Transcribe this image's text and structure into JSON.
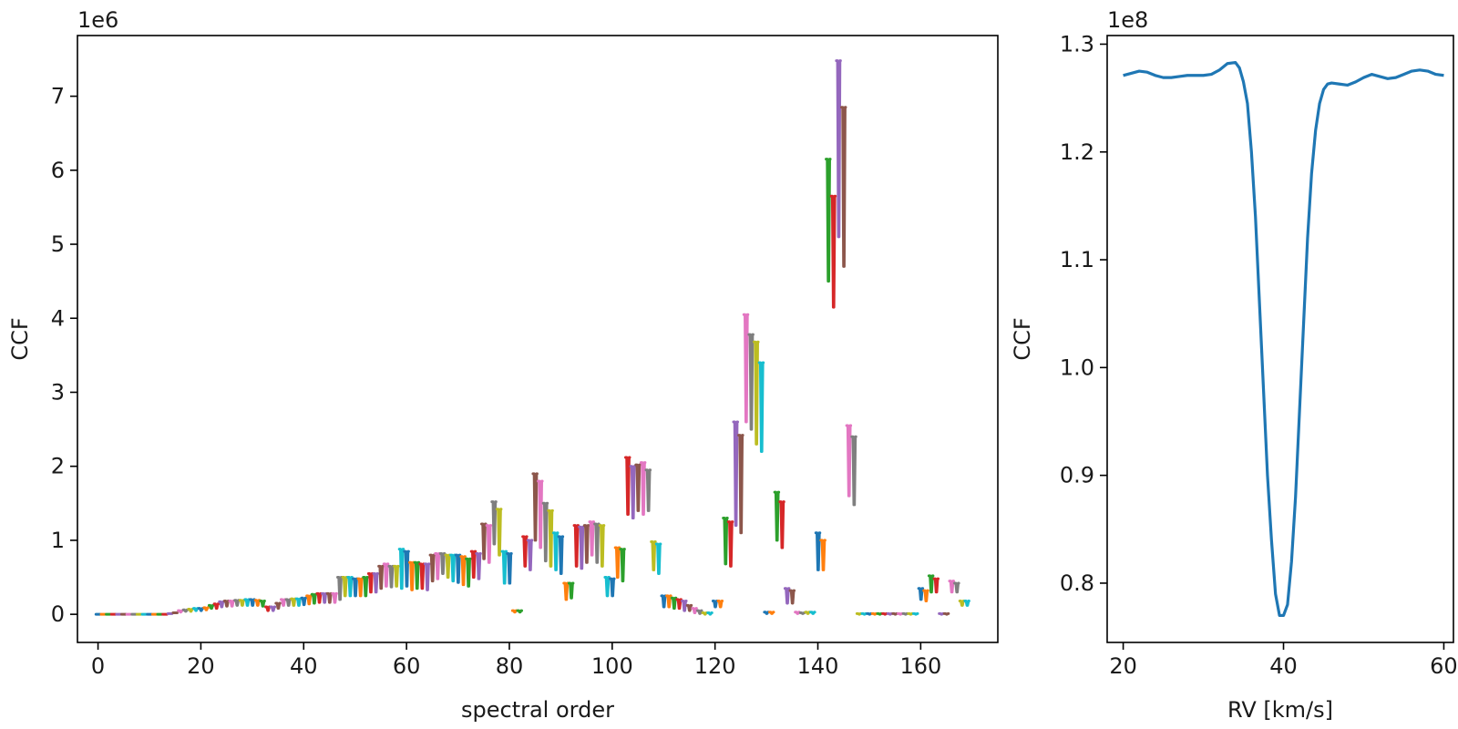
{
  "chart_data": [
    {
      "type": "line",
      "xlabel": "spectral order",
      "ylabel": "CCF",
      "y_offset_label": "1e6",
      "xlim": [
        -4,
        175
      ],
      "ylim": [
        -0.38,
        7.82
      ],
      "xticks": [
        0,
        20,
        40,
        60,
        80,
        100,
        120,
        140,
        160
      ],
      "yticks": [
        0,
        1,
        2,
        3,
        4,
        5,
        6,
        7
      ],
      "grid": false,
      "legend": "none",
      "palette": [
        "#1f77b4",
        "#ff7f0e",
        "#2ca02c",
        "#d62728",
        "#9467bd",
        "#8c564b",
        "#e377c2",
        "#7f7f7f",
        "#bcbd22",
        "#17becf"
      ],
      "segment_width": 0.8,
      "orders_start": 0,
      "order_profiles": [
        [
          0,
          0
        ],
        [
          0,
          0
        ],
        [
          0,
          0
        ],
        [
          0,
          0
        ],
        [
          0,
          0
        ],
        [
          0,
          0
        ],
        [
          0,
          0
        ],
        [
          0,
          0
        ],
        [
          0,
          0
        ],
        [
          0,
          0
        ],
        [
          0,
          0
        ],
        [
          0,
          0
        ],
        [
          0,
          0
        ],
        [
          0,
          0
        ],
        [
          0.01,
          0.01
        ],
        [
          0.02,
          0.02
        ],
        [
          0.05,
          0.03
        ],
        [
          0.06,
          0.04
        ],
        [
          0.07,
          0.04
        ],
        [
          0.08,
          0.05
        ],
        [
          0.08,
          0.05
        ],
        [
          0.09,
          0.06
        ],
        [
          0.12,
          0.08
        ],
        [
          0.14,
          0.08
        ],
        [
          0.17,
          0.1
        ],
        [
          0.18,
          0.11
        ],
        [
          0.18,
          0.11
        ],
        [
          0.19,
          0.12
        ],
        [
          0.19,
          0.12
        ],
        [
          0.2,
          0.12
        ],
        [
          0.2,
          0.12
        ],
        [
          0.19,
          0.12
        ],
        [
          0.18,
          0.11
        ],
        [
          0.1,
          0.05
        ],
        [
          0.1,
          0.05
        ],
        [
          0.15,
          0.08
        ],
        [
          0.2,
          0.12
        ],
        [
          0.2,
          0.12
        ],
        [
          0.21,
          0.12
        ],
        [
          0.21,
          0.12
        ],
        [
          0.22,
          0.13
        ],
        [
          0.25,
          0.14
        ],
        [
          0.27,
          0.15
        ],
        [
          0.28,
          0.16
        ],
        [
          0.28,
          0.16
        ],
        [
          0.28,
          0.16
        ],
        [
          0.28,
          0.16
        ],
        [
          0.5,
          0.2
        ],
        [
          0.5,
          0.25
        ],
        [
          0.5,
          0.25
        ],
        [
          0.48,
          0.25
        ],
        [
          0.48,
          0.25
        ],
        [
          0.5,
          0.25
        ],
        [
          0.55,
          0.3
        ],
        [
          0.55,
          0.3
        ],
        [
          0.65,
          0.35
        ],
        [
          0.68,
          0.38
        ],
        [
          0.65,
          0.37
        ],
        [
          0.65,
          0.38
        ],
        [
          0.88,
          0.35
        ],
        [
          0.85,
          0.38
        ],
        [
          0.7,
          0.33
        ],
        [
          0.7,
          0.35
        ],
        [
          0.68,
          0.35
        ],
        [
          0.68,
          0.33
        ],
        [
          0.8,
          0.45
        ],
        [
          0.82,
          0.48
        ],
        [
          0.82,
          0.55
        ],
        [
          0.8,
          0.5
        ],
        [
          0.8,
          0.45
        ],
        [
          0.8,
          0.43
        ],
        [
          0.78,
          0.4
        ],
        [
          0.75,
          0.38
        ],
        [
          0.85,
          0.5
        ],
        [
          0.82,
          0.48
        ],
        [
          1.22,
          0.75
        ],
        [
          1.2,
          0.7
        ],
        [
          1.52,
          0.95
        ],
        [
          1.42,
          0.8
        ],
        [
          0.85,
          0.42
        ],
        [
          0.82,
          0.42
        ],
        [
          0.05,
          0.03
        ],
        [
          0.05,
          0.03
        ],
        [
          1.05,
          0.65
        ],
        [
          1.0,
          0.6
        ],
        [
          1.9,
          1.0
        ],
        [
          1.8,
          0.9
        ],
        [
          1.5,
          0.72
        ],
        [
          1.4,
          0.65
        ],
        [
          1.1,
          0.6
        ],
        [
          1.05,
          0.55
        ],
        [
          0.42,
          0.2
        ],
        [
          0.42,
          0.22
        ],
        [
          1.2,
          0.65
        ],
        [
          1.18,
          0.62
        ],
        [
          1.2,
          0.7
        ],
        [
          1.25,
          0.8
        ],
        [
          1.22,
          0.7
        ],
        [
          1.2,
          0.65
        ],
        [
          0.5,
          0.25
        ],
        [
          0.48,
          0.25
        ],
        [
          0.9,
          0.5
        ],
        [
          0.88,
          0.45
        ],
        [
          2.12,
          1.35
        ],
        [
          2.0,
          1.3
        ],
        [
          2.02,
          1.4
        ],
        [
          2.05,
          1.35
        ],
        [
          1.95,
          1.4
        ],
        [
          0.98,
          0.6
        ],
        [
          0.95,
          0.55
        ],
        [
          0.25,
          0.1
        ],
        [
          0.25,
          0.1
        ],
        [
          0.22,
          0.08
        ],
        [
          0.2,
          0.08
        ],
        [
          0.18,
          0.05
        ],
        [
          0.12,
          0.05
        ],
        [
          0.08,
          0.02
        ],
        [
          0.05,
          0.01
        ],
        [
          0.02,
          0.0
        ],
        [
          0.02,
          0.0
        ],
        [
          0.18,
          0.1
        ],
        [
          0.18,
          0.1
        ],
        [
          1.3,
          0.68
        ],
        [
          1.25,
          0.65
        ],
        [
          2.6,
          1.2
        ],
        [
          2.42,
          1.1
        ],
        [
          4.05,
          2.6
        ],
        [
          3.78,
          2.5
        ],
        [
          3.68,
          2.3
        ],
        [
          3.4,
          2.2
        ],
        [
          0.03,
          0.01
        ],
        [
          0.03,
          0.01
        ],
        [
          1.65,
          1.0
        ],
        [
          1.52,
          0.9
        ],
        [
          0.35,
          0.15
        ],
        [
          0.32,
          0.15
        ],
        [
          0.03,
          0.01
        ],
        [
          0.02,
          0.01
        ],
        [
          0.03,
          0.01
        ],
        [
          0.03,
          0.01
        ],
        [
          1.1,
          0.6
        ],
        [
          1.0,
          0.6
        ],
        [
          6.15,
          4.5
        ],
        [
          5.65,
          4.15
        ],
        [
          7.48,
          5.1
        ],
        [
          6.85,
          4.7
        ],
        [
          2.55,
          1.6
        ],
        [
          2.4,
          1.48
        ],
        [
          0.01,
          0.0
        ],
        [
          0.01,
          0.0
        ],
        [
          0.01,
          0.0
        ],
        [
          0.01,
          0.0
        ],
        [
          0.01,
          0.0
        ],
        [
          0.01,
          0.0
        ],
        [
          0.01,
          0.0
        ],
        [
          0.01,
          0.0
        ],
        [
          0.01,
          0.0
        ],
        [
          0.01,
          0.0
        ],
        [
          0.01,
          0.0
        ],
        [
          0.01,
          0.0
        ],
        [
          0.35,
          0.2
        ],
        [
          0.32,
          0.18
        ],
        [
          0.52,
          0.3
        ],
        [
          0.48,
          0.3
        ],
        [
          0.01,
          0.0
        ],
        [
          0.01,
          0.0
        ],
        [
          0.45,
          0.3
        ],
        [
          0.42,
          0.3
        ],
        [
          0.18,
          0.12
        ],
        [
          0.18,
          0.12
        ]
      ]
    },
    {
      "type": "line",
      "xlabel": "RV [km/s]",
      "ylabel": "CCF",
      "y_offset_label": "1e8",
      "xlim": [
        18,
        61.2
      ],
      "ylim": [
        0.745,
        1.308
      ],
      "xticks": [
        20,
        40,
        60
      ],
      "yticks": [
        0.8,
        0.9,
        1.0,
        1.1,
        1.2,
        1.3
      ],
      "grid": false,
      "legend": "none",
      "series": [
        {
          "color": "#1f77b4",
          "x": [
            20,
            21,
            22,
            23,
            24,
            25,
            26,
            27,
            28,
            29,
            30,
            31,
            32,
            33,
            34,
            34.5,
            35,
            35.5,
            36,
            36.5,
            37,
            37.5,
            38,
            38.5,
            39,
            39.5,
            40,
            40.5,
            41,
            41.5,
            42,
            42.5,
            43,
            43.5,
            44,
            44.5,
            45,
            45.5,
            46,
            47,
            48,
            49,
            50,
            51,
            52,
            53,
            54,
            55,
            56,
            57,
            58,
            59,
            60
          ],
          "y": [
            1.271,
            1.273,
            1.275,
            1.274,
            1.271,
            1.269,
            1.269,
            1.27,
            1.271,
            1.271,
            1.271,
            1.272,
            1.276,
            1.282,
            1.283,
            1.278,
            1.265,
            1.245,
            1.2,
            1.14,
            1.06,
            0.98,
            0.9,
            0.84,
            0.79,
            0.77,
            0.77,
            0.78,
            0.82,
            0.88,
            0.96,
            1.04,
            1.12,
            1.18,
            1.22,
            1.245,
            1.258,
            1.263,
            1.264,
            1.263,
            1.262,
            1.265,
            1.269,
            1.272,
            1.27,
            1.268,
            1.269,
            1.272,
            1.275,
            1.276,
            1.275,
            1.272,
            1.271
          ]
        }
      ]
    }
  ]
}
